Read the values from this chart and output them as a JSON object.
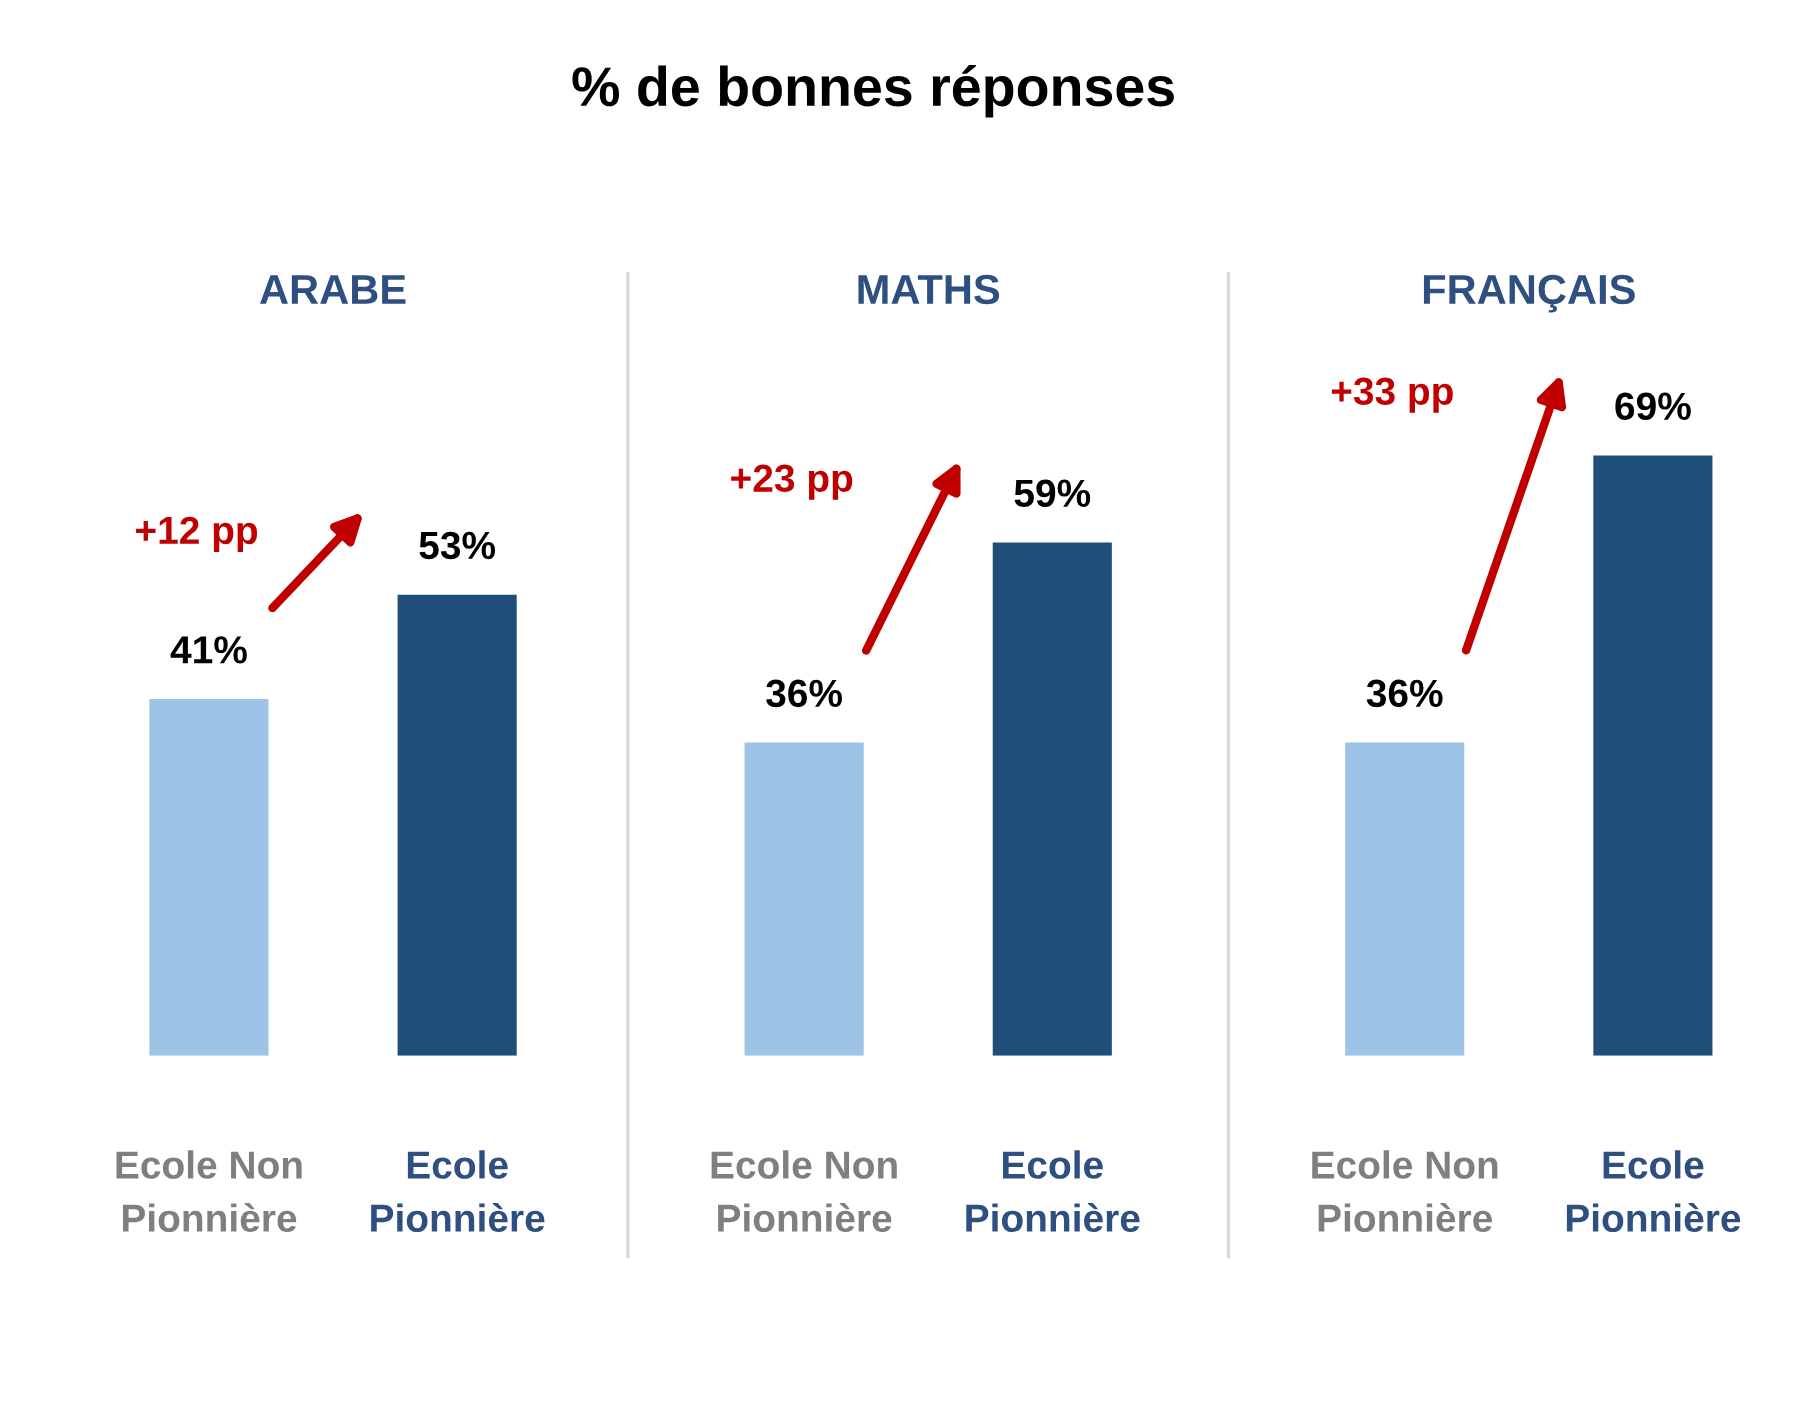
{
  "chart_data": [
    {
      "type": "other",
      "title": "% de bonnes réponses"
    },
    {
      "type": "bar",
      "title": "ARABE",
      "categories": [
        "Ecole Non\nPionnière",
        "Ecole\nPionnière"
      ],
      "values": [
        41,
        53
      ],
      "colors": [
        "#9dc3e6",
        "#1f4e79"
      ],
      "value_labels": [
        "41%",
        "53%"
      ],
      "annotations": [
        "+12 pp"
      ],
      "tick_labels": "x",
      "grid": false,
      "legend": false
    },
    {
      "type": "bar",
      "title": "MATHS",
      "categories": [
        "Ecole Non\nPionnière",
        "Ecole\nPionnière"
      ],
      "values": [
        36,
        59
      ],
      "colors": [
        "#9dc3e6",
        "#1f4e79"
      ],
      "value_labels": [
        "36%",
        "59%"
      ],
      "annotations": [
        "+23 pp"
      ],
      "tick_labels": "x",
      "grid": false,
      "legend": false
    },
    {
      "type": "bar",
      "title": "FRANÇAIS",
      "categories": [
        "Ecole Non\nPionnière",
        "Ecole\nPionnière"
      ],
      "values": [
        36,
        69
      ],
      "colors": [
        "#9dc3e6",
        "#1f4e79"
      ],
      "value_labels": [
        "36%",
        "69%"
      ],
      "annotations": [
        "+33 pp"
      ],
      "tick_labels": "x",
      "grid": false,
      "legend": false
    }
  ]
}
